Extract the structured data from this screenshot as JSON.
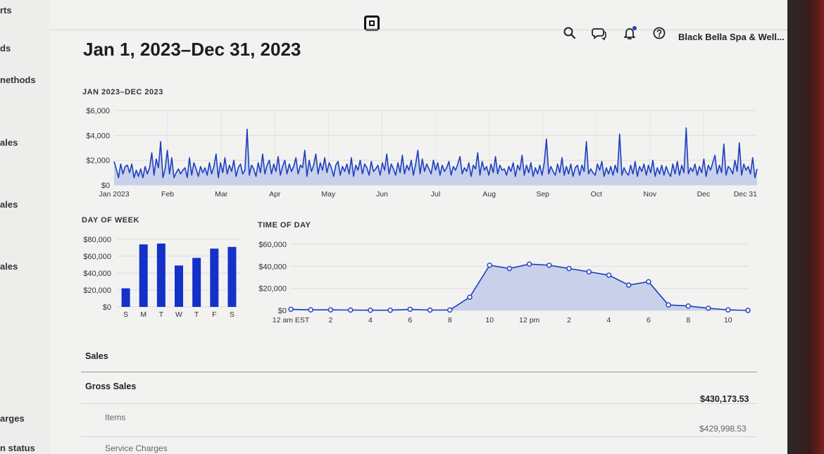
{
  "sidebar": {
    "items": [
      "rts",
      "ds",
      "nethods",
      "ales",
      "ales",
      "ales",
      "arges",
      "n status"
    ]
  },
  "header": {
    "account_name": "Black Bella Spa & Well..."
  },
  "page": {
    "title": "Jan 1, 2023–Dec 31, 2023"
  },
  "colors": {
    "series": "#1f3fbf",
    "area_fill": "#c9d1ea",
    "bar": "#1432c8"
  },
  "chart_data": [
    {
      "type": "area",
      "title": "JAN 2023–DEC 2023",
      "ylim": [
        0,
        6000
      ],
      "y_ticks": [
        "$6,000",
        "$4,000",
        "$2,000",
        "$0"
      ],
      "x_tick_labels": [
        "Jan 2023",
        "Feb",
        "Mar",
        "Apr",
        "May",
        "Jun",
        "Jul",
        "Aug",
        "Sep",
        "Oct",
        "Nov",
        "Dec",
        "Dec 31"
      ],
      "x_label": "",
      "y_label": "",
      "series": [
        {
          "values": [
            1900,
            1300,
            600,
            1700,
            900,
            1500,
            1600,
            1000,
            1700,
            600,
            1200,
            700,
            1300,
            600,
            1500,
            900,
            1400,
            2600,
            800,
            2100,
            1400,
            3500,
            600,
            1300,
            2800,
            900,
            2200,
            600,
            1000,
            1300,
            900,
            1200,
            1400,
            600,
            2200,
            800,
            1800,
            1300,
            700,
            1500,
            1000,
            1400,
            800,
            1800,
            900,
            1500,
            2500,
            600,
            1800,
            1000,
            2200,
            900,
            1600,
            1100,
            2000,
            700,
            1400,
            1700,
            900,
            1200,
            4500,
            800,
            1600,
            1300,
            700,
            1800,
            1000,
            2500,
            900,
            1600,
            2000,
            900,
            1700,
            1100,
            2300,
            800,
            1500,
            2000,
            900,
            1700,
            1100,
            1500,
            2200,
            900,
            1600,
            1400,
            2800,
            700,
            2000,
            1100,
            1600,
            2500,
            900,
            1800,
            1200,
            2200,
            1000,
            1800,
            1400,
            700,
            1600,
            1900,
            800,
            1500,
            1100,
            1700,
            900,
            2200,
            700,
            1600,
            1200,
            2000,
            900,
            1700,
            1400,
            800,
            1900,
            1100,
            1300,
            1600,
            800,
            1800,
            1200,
            2500,
            900,
            1700,
            1300,
            800,
            1800,
            1000,
            2400,
            900,
            1600,
            1200,
            2000,
            800,
            1700,
            2800,
            900,
            2100,
            1100,
            1700,
            1300,
            900,
            2000,
            1200,
            1800,
            800,
            1600,
            1100,
            1400,
            1900,
            800,
            1500,
            1200,
            1700,
            2300,
            900,
            1400,
            1100,
            1800,
            700,
            1600,
            1300,
            2600,
            800,
            1900,
            1200,
            1500,
            800,
            1700,
            1000,
            2300,
            900,
            1600,
            1200,
            1300,
            800,
            1500,
            1100,
            1800,
            700,
            1600,
            1200,
            2400,
            800,
            1600,
            1000,
            1800,
            700,
            1400,
            900,
            1600,
            800,
            1800,
            3700,
            900,
            1500,
            1100,
            800,
            1700,
            1000,
            2200,
            800,
            1500,
            900,
            1700,
            700,
            1400,
            1600,
            800,
            1600,
            1100,
            3500,
            900,
            1300,
            1000,
            800,
            1700,
            1200,
            1900,
            700,
            1400,
            900,
            1500,
            800,
            1600,
            1000,
            4100,
            800,
            1400,
            1000,
            800,
            1600,
            900,
            1900,
            700,
            1500,
            1100,
            1700,
            800,
            1600,
            1000,
            2000,
            700,
            1400,
            900,
            1600,
            800,
            1500,
            1000,
            700,
            1700,
            900,
            1900,
            800,
            1600,
            1000,
            4600,
            900,
            1400,
            1100,
            1700,
            800,
            1500,
            1000,
            2100,
            700,
            1600,
            1200,
            1800,
            2400,
            900,
            1600,
            1000,
            3300,
            800,
            1500,
            1300,
            900,
            2000,
            1100,
            3400,
            800,
            1700,
            1200,
            1500,
            900,
            2200,
            600,
            1300
          ]
        }
      ]
    },
    {
      "type": "bar",
      "title": "DAY OF WEEK",
      "ylim": [
        0,
        80000
      ],
      "y_ticks": [
        "$80,000",
        "$60,000",
        "$40,000",
        "$20,000",
        "$0"
      ],
      "categories": [
        "S",
        "M",
        "T",
        "W",
        "T",
        "F",
        "S"
      ],
      "values": [
        22000,
        74000,
        75000,
        49000,
        58000,
        69000,
        71000
      ],
      "x_label": "",
      "y_label": ""
    },
    {
      "type": "area",
      "title": "TIME OF DAY",
      "ylim": [
        0,
        60000
      ],
      "y_ticks": [
        "$60,000",
        "$40,000",
        "$20,000",
        "$0"
      ],
      "x_tick_labels": [
        "12 am EST",
        "2",
        "4",
        "6",
        "8",
        "10",
        "12 pm",
        "2",
        "4",
        "6",
        "8",
        "10"
      ],
      "x_label": "",
      "y_label": "",
      "series": [
        {
          "values": [
            1000,
            500,
            500,
            300,
            200,
            200,
            1000,
            300,
            400,
            12000,
            41000,
            38000,
            42000,
            41000,
            38000,
            35000,
            32000,
            23000,
            26000,
            5000,
            4000,
            2000,
            500,
            0
          ]
        }
      ]
    }
  ],
  "sales_table": {
    "section_title": "Sales",
    "rows": [
      {
        "label": "Gross Sales",
        "value": "$430,173.53"
      },
      {
        "label": "Items",
        "value": "$429,998.53"
      },
      {
        "label": "Service Charges",
        "value": ""
      }
    ]
  }
}
